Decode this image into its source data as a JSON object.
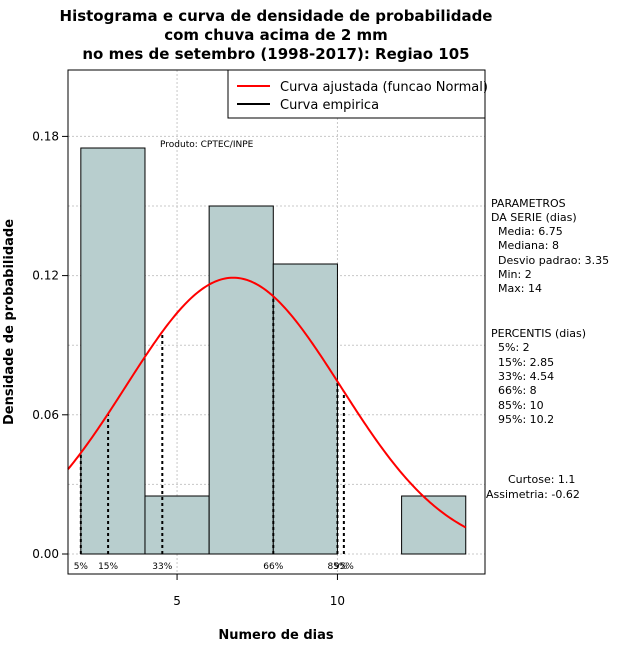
{
  "chart_data": {
    "type": "bar",
    "title": [
      "Histograma e curva de densidade de probabilidade",
      "com chuva acima de 2 mm",
      "no mes de setembro (1998-2017): Regiao 105"
    ],
    "xlabel": "Numero de dias",
    "ylabel": "Densidade de probabilidade",
    "xlim": [
      1.6,
      14.6
    ],
    "ylim": [
      0,
      0.2
    ],
    "x_ticks": [
      5,
      10
    ],
    "y_ticks": [
      0.0,
      0.06,
      0.12,
      0.18
    ],
    "y_tick_labels": [
      "0.00",
      "0.06",
      "0.12",
      "0.18"
    ],
    "grid": true,
    "bar_color": "#b8cece",
    "bars": [
      {
        "x0": 2,
        "x1": 4,
        "density": 0.175
      },
      {
        "x0": 4,
        "x1": 6,
        "density": 0.025
      },
      {
        "x0": 6,
        "x1": 8,
        "density": 0.15
      },
      {
        "x0": 8,
        "x1": 10,
        "density": 0.125
      },
      {
        "x0": 10,
        "x1": 12,
        "density": 0.0
      },
      {
        "x0": 12,
        "x1": 14,
        "density": 0.025
      }
    ],
    "fitted_curve": {
      "name": "Curva ajustada (funcao Normal)",
      "mean": 6.75,
      "sd": 3.35,
      "color": "#ff0000",
      "x_range": [
        1.6,
        14
      ]
    },
    "empirical_curve": {
      "name": "Curva empirica",
      "color": "#000000"
    },
    "percentile_lines": [
      {
        "label": "5%",
        "x": 2
      },
      {
        "label": "15%",
        "x": 2.85
      },
      {
        "label": "33%",
        "x": 4.54
      },
      {
        "label": "66%",
        "x": 8
      },
      {
        "label": "85%",
        "x": 10
      },
      {
        "label": "95%",
        "x": 10.2
      }
    ],
    "legend": [
      "Curva ajustada (funcao Normal)",
      "Curva empirica"
    ],
    "legend_position": "top-right"
  },
  "annotation": {
    "produto": "Produto: CPTEC/INPE"
  },
  "parametros": {
    "heading1": "PARAMETROS",
    "heading2": "DA SERIE (dias)",
    "media": "Media: 6.75",
    "mediana": "Mediana: 8",
    "desvio": "Desvio padrao: 3.35",
    "min": "Min: 2",
    "max": "Max: 14"
  },
  "percentis": {
    "heading": "PERCENTIS (dias)",
    "p5": "5%: 2",
    "p15": "15%: 2.85",
    "p33": "33%: 4.54",
    "p66": "66%: 8",
    "p85": "85%: 10",
    "p95": "95%: 10.2"
  },
  "shape": {
    "curtose": "Curtose: 1.1",
    "assimetria": "Assimetria: -0.62"
  }
}
